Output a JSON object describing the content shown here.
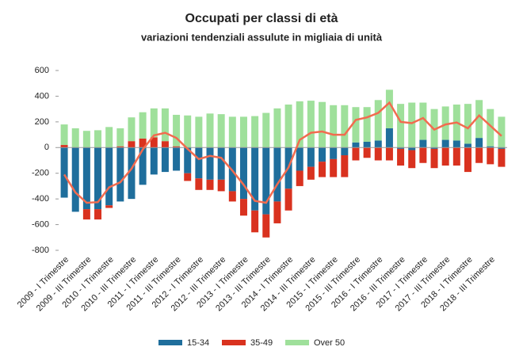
{
  "chart_data": {
    "type": "bar",
    "stacked": true,
    "title": "Occupati per classi di età",
    "subtitle": "variazioni tendenziali assulute in migliaia di unità",
    "categories": [
      "2009 - I Trimestre",
      null,
      "2009 - III Trimestre",
      null,
      "2010 - I Trimestre",
      null,
      "2010 - III Trimestre",
      null,
      "2011 - I Trimestre",
      null,
      "2011 - III Trimestre",
      null,
      "2012 - I Trimestre",
      null,
      "2012 - III Trimestre",
      null,
      "2013 - I Trimestre",
      null,
      "2013 - III Trimestre",
      null,
      "2014 - I Trimestre",
      null,
      "2014 - III Trimestre",
      null,
      "2015 - I Trimestre",
      null,
      "2015 - III Trimestre",
      null,
      "2016 - I Trimestre",
      null,
      "2016 - III Trimestre",
      null,
      "2017 - I Trimestre",
      null,
      "2017 - III Trimestre",
      null,
      "2018 - I Trimestre",
      null,
      "2018 - III Trimestre",
      null
    ],
    "series": [
      {
        "name": "15-34",
        "color": "#1f6e9c",
        "values": [
          -390,
          -500,
          -480,
          -480,
          -450,
          -420,
          -400,
          -290,
          -210,
          -190,
          -180,
          -200,
          -240,
          -250,
          -250,
          -340,
          -400,
          -490,
          -520,
          -420,
          -320,
          -180,
          -150,
          -110,
          -90,
          -60,
          40,
          45,
          55,
          150,
          -10,
          -20,
          60,
          -10,
          60,
          55,
          30,
          75,
          10,
          -10
        ]
      },
      {
        "name": "35-49",
        "color": "#d9321f",
        "values": [
          20,
          0,
          -80,
          -80,
          -20,
          10,
          50,
          70,
          80,
          50,
          10,
          -60,
          -90,
          -80,
          -90,
          -80,
          -130,
          -170,
          -180,
          -170,
          -170,
          -120,
          -100,
          -120,
          -140,
          -170,
          -100,
          -80,
          -100,
          -100,
          -130,
          -140,
          -120,
          -150,
          -140,
          -140,
          -190,
          -120,
          -130,
          -140
        ]
      },
      {
        "name": "Over 50",
        "color": "#9fe09b",
        "values": [
          160,
          150,
          130,
          135,
          160,
          140,
          185,
          205,
          225,
          255,
          245,
          250,
          240,
          265,
          260,
          240,
          240,
          245,
          270,
          305,
          335,
          360,
          365,
          355,
          330,
          330,
          275,
          270,
          315,
          300,
          340,
          350,
          290,
          300,
          260,
          280,
          310,
          295,
          290,
          240
        ]
      }
    ],
    "total": [
      -210,
      -350,
      -430,
      -425,
      -310,
      -270,
      -165,
      -15,
      95,
      115,
      75,
      -10,
      -90,
      -65,
      -80,
      -180,
      -290,
      -415,
      -430,
      -285,
      -155,
      60,
      115,
      125,
      100,
      100,
      215,
      235,
      270,
      350,
      200,
      190,
      230,
      140,
      180,
      195,
      150,
      250,
      170,
      90
    ],
    "line_color": "#f26b4f",
    "ylim": [
      -800,
      600
    ],
    "yticks": [
      -800,
      -600,
      -400,
      -200,
      0,
      200,
      400,
      600
    ],
    "grid": false
  }
}
